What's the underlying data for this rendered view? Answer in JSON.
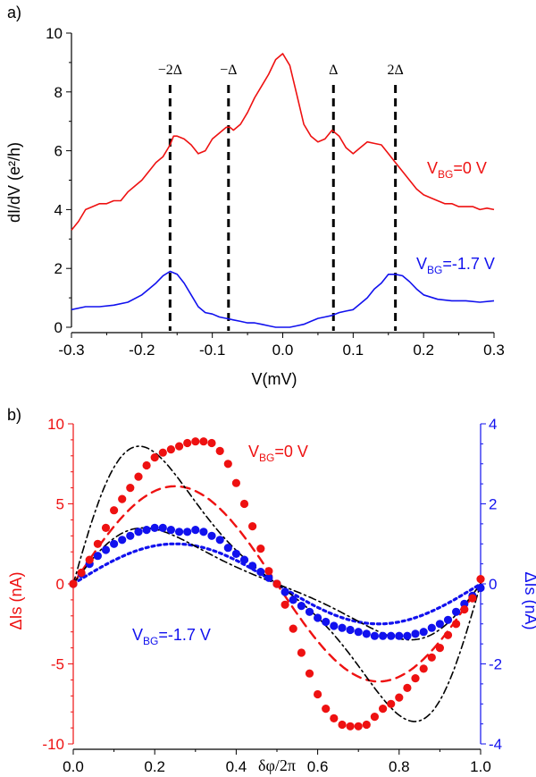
{
  "chart_data": [
    {
      "panel_label": "a)",
      "type": "line",
      "xlabel": "V(mV)",
      "ylabel": "dI/dV (e²/h)",
      "xlim": [
        -0.3,
        0.3
      ],
      "ylim": [
        0,
        10
      ],
      "xticks": [
        -0.3,
        -0.2,
        -0.1,
        0.0,
        0.1,
        0.2,
        0.3
      ],
      "xtick_labels": [
        "-0.3",
        "-0.2",
        "-0.1",
        "0.0",
        "0.1",
        "0.2",
        "0.3"
      ],
      "yticks": [
        0,
        2,
        4,
        6,
        8,
        10
      ],
      "ytick_labels": [
        "0",
        "2",
        "4",
        "6",
        "8",
        "10"
      ],
      "grid": false,
      "vlines": [
        {
          "x": -0.16,
          "label": "−2Δ"
        },
        {
          "x": -0.077,
          "label": "−Δ"
        },
        {
          "x": 0.072,
          "label": "Δ"
        },
        {
          "x": 0.16,
          "label": "2Δ"
        }
      ],
      "series": [
        {
          "color": "#ee1111",
          "label_main": "V",
          "label_sub": "BG",
          "label_rest": "=0 V",
          "x": [
            -0.3,
            -0.29,
            -0.28,
            -0.27,
            -0.26,
            -0.25,
            -0.24,
            -0.23,
            -0.22,
            -0.21,
            -0.2,
            -0.19,
            -0.18,
            -0.17,
            -0.16,
            -0.155,
            -0.15,
            -0.14,
            -0.13,
            -0.12,
            -0.11,
            -0.1,
            -0.09,
            -0.08,
            -0.075,
            -0.07,
            -0.06,
            -0.05,
            -0.04,
            -0.03,
            -0.02,
            -0.01,
            0.0,
            0.01,
            0.02,
            0.03,
            0.04,
            0.05,
            0.06,
            0.07,
            0.08,
            0.09,
            0.1,
            0.11,
            0.12,
            0.13,
            0.14,
            0.15,
            0.16,
            0.17,
            0.18,
            0.19,
            0.2,
            0.21,
            0.22,
            0.23,
            0.24,
            0.25,
            0.26,
            0.27,
            0.28,
            0.29,
            0.3
          ],
          "y": [
            3.3,
            3.6,
            4.0,
            4.1,
            4.2,
            4.2,
            4.3,
            4.3,
            4.6,
            4.8,
            5.0,
            5.3,
            5.6,
            5.8,
            6.2,
            6.5,
            6.5,
            6.4,
            6.2,
            5.9,
            6.0,
            6.4,
            6.6,
            6.8,
            6.8,
            6.7,
            6.9,
            7.3,
            7.8,
            8.2,
            8.6,
            9.1,
            9.3,
            8.9,
            7.9,
            6.9,
            6.5,
            6.3,
            6.4,
            6.7,
            6.5,
            6.1,
            5.9,
            6.1,
            6.3,
            6.25,
            6.2,
            5.9,
            5.6,
            5.3,
            5.0,
            4.7,
            4.5,
            4.4,
            4.3,
            4.2,
            4.2,
            4.1,
            4.1,
            4.1,
            4.0,
            4.05,
            4.0
          ]
        },
        {
          "color": "#1111ee",
          "label_main": "V",
          "label_sub": "BG",
          "label_rest": "=-1.7 V",
          "x": [
            -0.3,
            -0.28,
            -0.26,
            -0.24,
            -0.22,
            -0.2,
            -0.19,
            -0.18,
            -0.17,
            -0.16,
            -0.15,
            -0.14,
            -0.13,
            -0.12,
            -0.11,
            -0.1,
            -0.09,
            -0.08,
            -0.07,
            -0.06,
            -0.05,
            -0.04,
            -0.03,
            -0.02,
            -0.01,
            0.0,
            0.01,
            0.02,
            0.03,
            0.04,
            0.05,
            0.06,
            0.07,
            0.08,
            0.09,
            0.1,
            0.11,
            0.12,
            0.13,
            0.14,
            0.15,
            0.16,
            0.17,
            0.18,
            0.19,
            0.2,
            0.22,
            0.24,
            0.26,
            0.28,
            0.3
          ],
          "y": [
            0.6,
            0.7,
            0.7,
            0.75,
            0.85,
            1.1,
            1.3,
            1.5,
            1.75,
            1.9,
            1.8,
            1.5,
            1.1,
            0.7,
            0.5,
            0.45,
            0.35,
            0.3,
            0.25,
            0.2,
            0.15,
            0.15,
            0.1,
            0.05,
            0.0,
            0.0,
            0.0,
            0.05,
            0.1,
            0.2,
            0.3,
            0.35,
            0.4,
            0.5,
            0.55,
            0.6,
            0.8,
            1.0,
            1.3,
            1.5,
            1.8,
            1.8,
            1.75,
            1.55,
            1.3,
            1.1,
            0.95,
            0.9,
            0.9,
            0.85,
            0.9
          ]
        }
      ]
    },
    {
      "panel_label": "b)",
      "type": "scatter",
      "xlabel": "δφ/2π",
      "ylabel_left": "ΔIs (nA)",
      "ylabel_right": "ΔIs (nA)",
      "xlim": [
        0,
        1
      ],
      "ylim_left": [
        -10,
        10
      ],
      "ylim_right": [
        -4,
        4
      ],
      "xticks": [
        0.0,
        0.2,
        0.4,
        0.6,
        0.8,
        1.0
      ],
      "xtick_labels": [
        "0.0",
        "0.2",
        "0.4",
        "0.6",
        "0.8",
        "1.0"
      ],
      "yticks_left": [
        -10,
        -5,
        0,
        5,
        10
      ],
      "ytick_labels_left": [
        "-10",
        "-5",
        "0",
        "5",
        "10"
      ],
      "yticks_right": [
        -4,
        -2,
        0,
        2,
        4
      ],
      "ytick_labels_right": [
        "-4",
        "-2",
        "0",
        "2",
        "4"
      ],
      "left_color": "#ee1111",
      "right_color": "#1111ee",
      "grid": false,
      "series": [
        {
          "color": "#ee1111",
          "axis": "left",
          "style": "markers",
          "label_main": "V",
          "label_sub": "BG",
          "label_rest": "=0 V",
          "x": [
            0.0,
            0.02,
            0.04,
            0.06,
            0.08,
            0.1,
            0.12,
            0.14,
            0.16,
            0.18,
            0.2,
            0.22,
            0.24,
            0.26,
            0.28,
            0.3,
            0.32,
            0.34,
            0.36,
            0.38,
            0.4,
            0.42,
            0.44,
            0.46,
            0.48,
            0.5,
            0.52,
            0.54,
            0.56,
            0.58,
            0.6,
            0.62,
            0.64,
            0.66,
            0.68,
            0.7,
            0.72,
            0.74,
            0.76,
            0.78,
            0.8,
            0.82,
            0.84,
            0.86,
            0.88,
            0.9,
            0.92,
            0.94,
            0.96,
            0.98,
            1.0
          ],
          "y": [
            0.0,
            0.7,
            1.5,
            2.5,
            3.5,
            4.6,
            5.3,
            6.0,
            6.7,
            7.4,
            7.9,
            8.2,
            8.4,
            8.6,
            8.8,
            8.9,
            8.9,
            8.8,
            8.3,
            7.5,
            6.3,
            5.0,
            3.6,
            2.2,
            0.8,
            0.0,
            -1.3,
            -2.8,
            -4.3,
            -5.6,
            -6.9,
            -7.8,
            -8.4,
            -8.8,
            -8.9,
            -8.9,
            -8.8,
            -8.3,
            -7.8,
            -7.5,
            -7.1,
            -6.5,
            -5.9,
            -5.3,
            -4.6,
            -4.0,
            -3.2,
            -2.5,
            -1.6,
            -0.9,
            0.3
          ]
        },
        {
          "color": "#1111ee",
          "axis": "right",
          "style": "markers",
          "label_main": "V",
          "label_sub": "BG",
          "label_rest": "=-1.7 V",
          "x": [
            0.0,
            0.02,
            0.04,
            0.06,
            0.08,
            0.1,
            0.12,
            0.14,
            0.16,
            0.18,
            0.2,
            0.22,
            0.24,
            0.26,
            0.28,
            0.3,
            0.32,
            0.34,
            0.36,
            0.38,
            0.4,
            0.42,
            0.44,
            0.46,
            0.48,
            0.5,
            0.52,
            0.54,
            0.56,
            0.58,
            0.6,
            0.62,
            0.64,
            0.66,
            0.68,
            0.7,
            0.72,
            0.74,
            0.76,
            0.78,
            0.8,
            0.82,
            0.84,
            0.86,
            0.88,
            0.9,
            0.92,
            0.94,
            0.96,
            0.98,
            1.0
          ],
          "y": [
            0.0,
            0.25,
            0.5,
            0.7,
            0.85,
            1.0,
            1.1,
            1.2,
            1.3,
            1.35,
            1.4,
            1.4,
            1.35,
            1.3,
            1.3,
            1.35,
            1.3,
            1.2,
            1.1,
            0.9,
            0.75,
            0.6,
            0.45,
            0.3,
            0.15,
            0.0,
            -0.2,
            -0.4,
            -0.55,
            -0.7,
            -0.85,
            -0.95,
            -1.05,
            -1.1,
            -1.15,
            -1.2,
            -1.25,
            -1.3,
            -1.3,
            -1.3,
            -1.3,
            -1.3,
            -1.25,
            -1.2,
            -1.1,
            -1.0,
            -0.9,
            -0.7,
            -0.5,
            -0.3,
            -0.1
          ]
        },
        {
          "color": "#ee1111",
          "axis": "left",
          "style": "dashed",
          "amplitude": 6.1,
          "skew": 0.0
        },
        {
          "color": "#1111ee",
          "axis": "right",
          "style": "dotted",
          "amplitude": 1.0,
          "skew": 0.0
        },
        {
          "color": "#000000",
          "axis": "left",
          "style": "dashdot",
          "amplitude": 8.6,
          "skew": 0.65
        },
        {
          "color": "#000000",
          "axis": "right",
          "style": "dashdot",
          "amplitude": 1.4,
          "skew": 0.55
        }
      ]
    }
  ]
}
